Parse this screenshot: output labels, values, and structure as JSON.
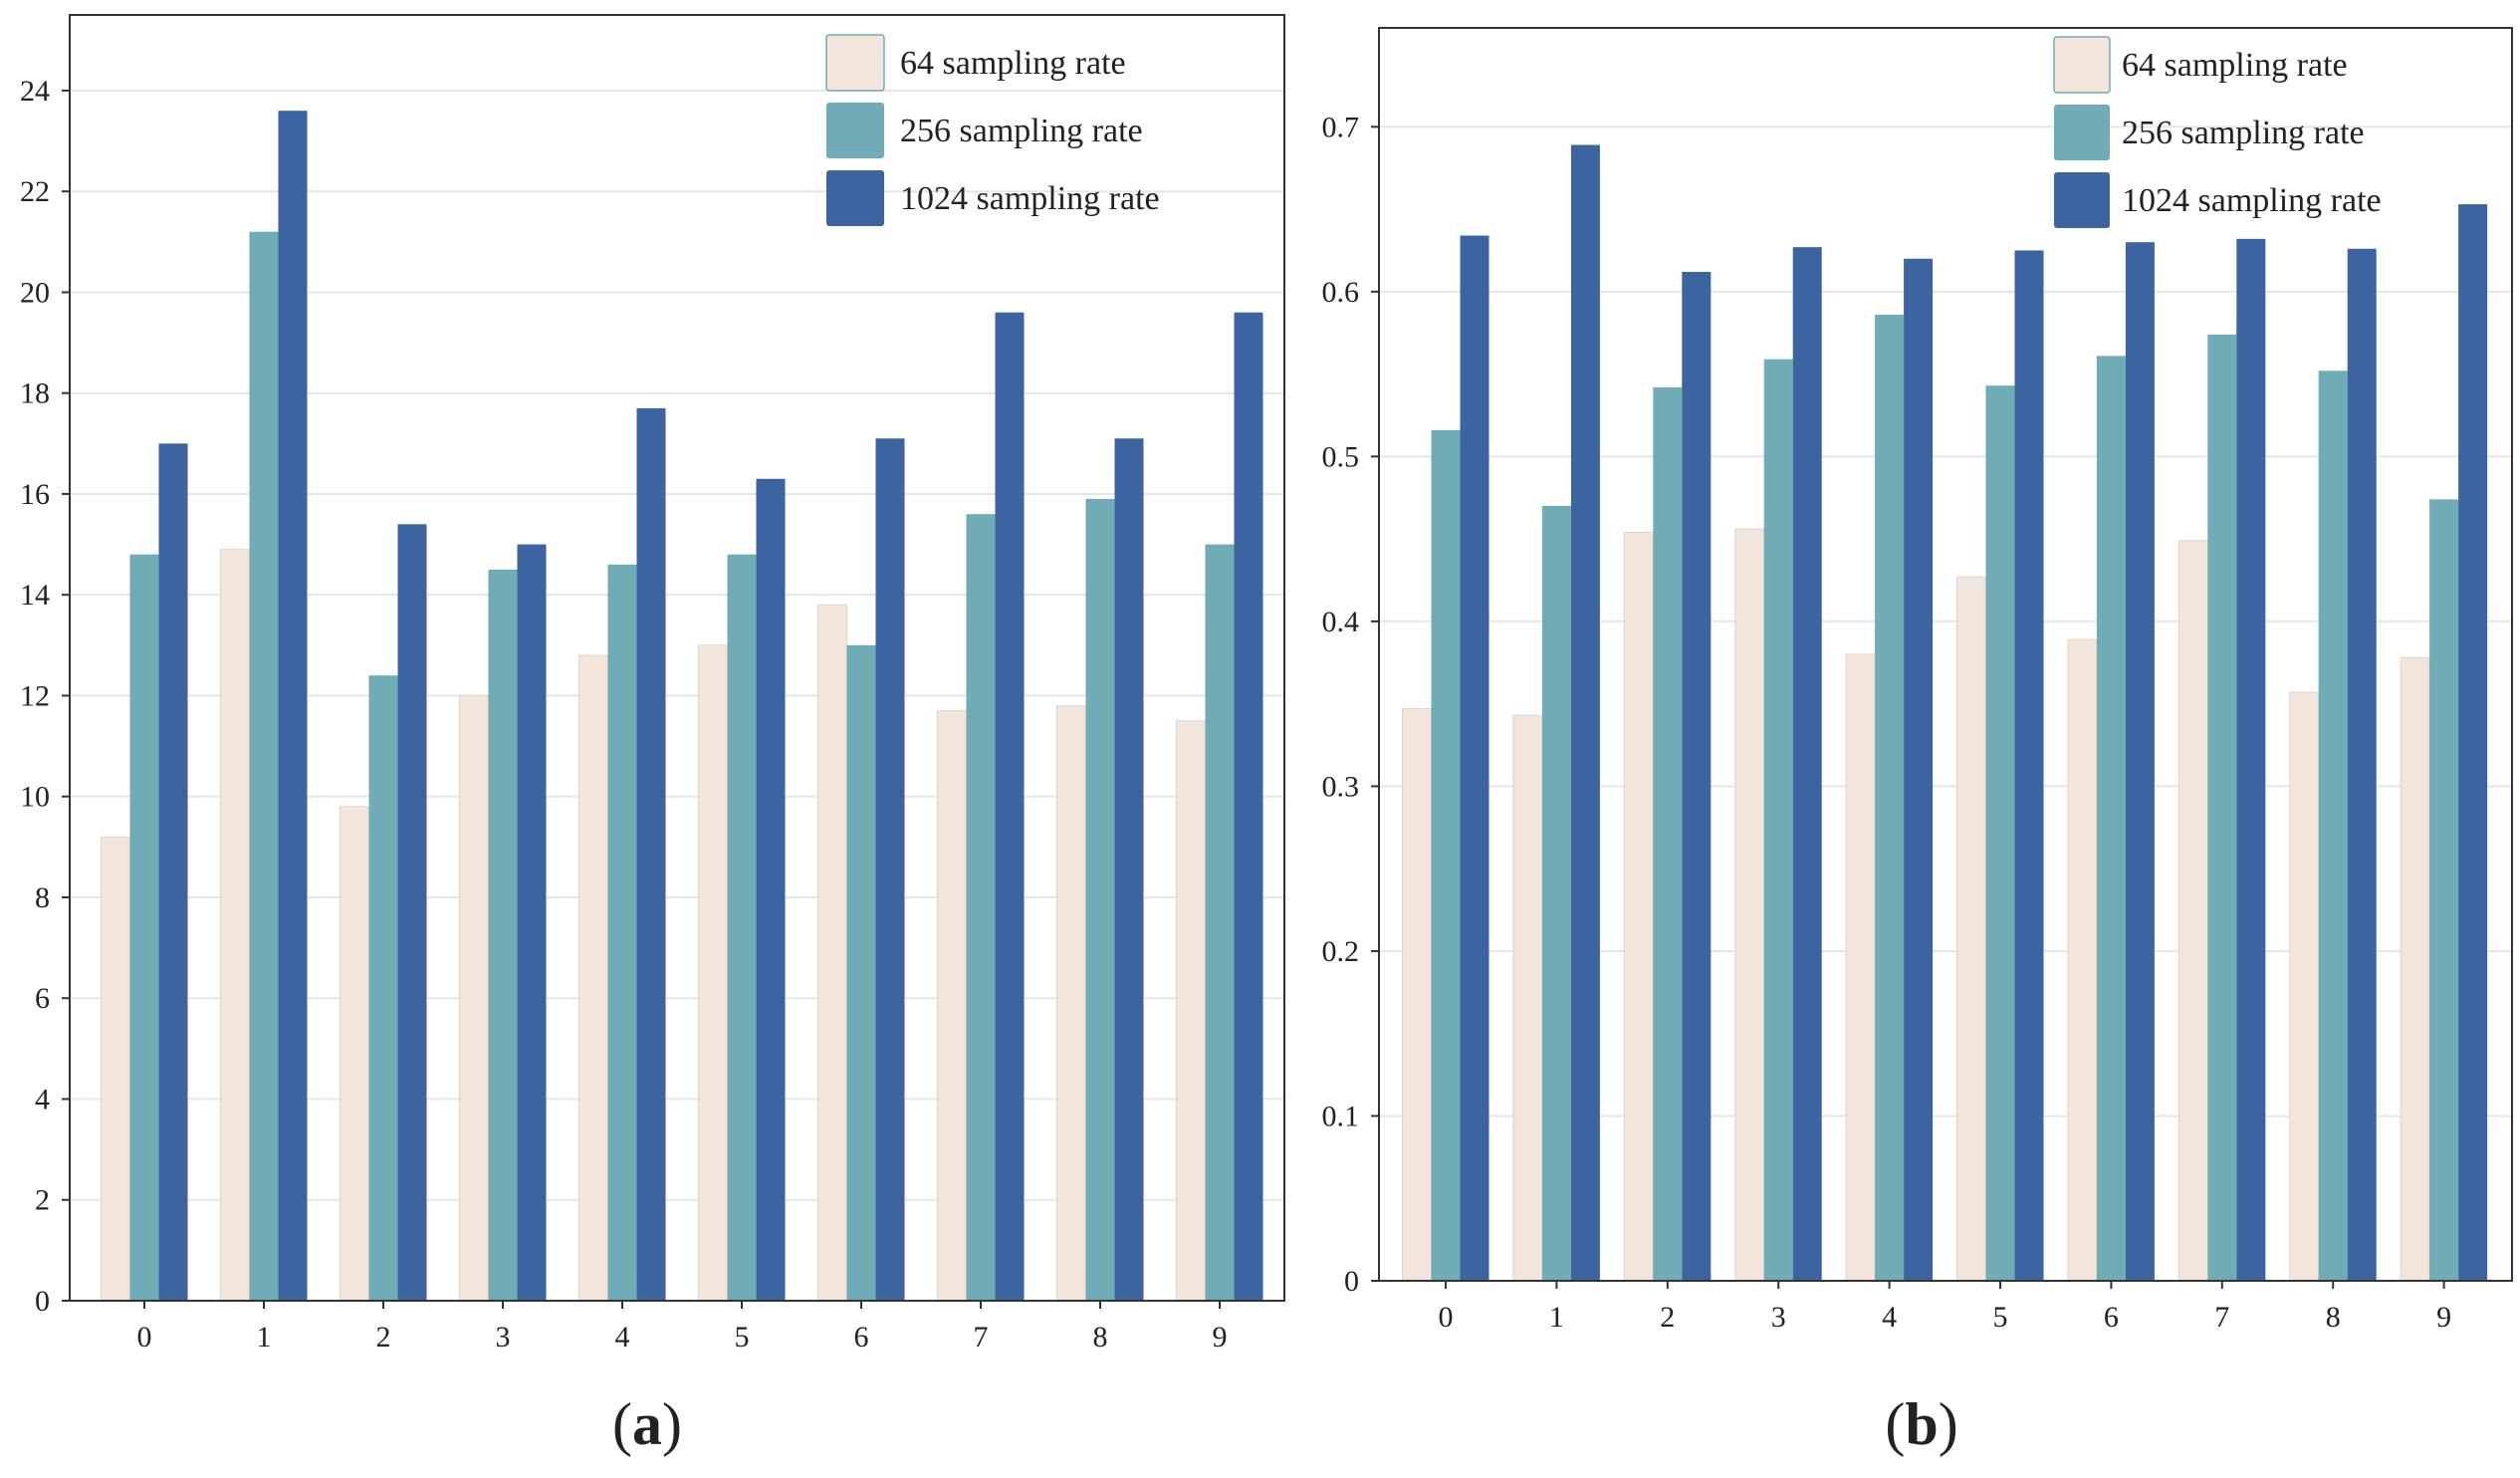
{
  "colors": {
    "s64": "#F2E6DC",
    "s256": "#6FACB5",
    "s1024": "#3C64A0",
    "grid": "#E6E6E6",
    "axis": "#333333"
  },
  "chart_data": [
    {
      "type": "bar",
      "panel_label": "a",
      "caption_open": "(",
      "caption_close": ")",
      "title": "",
      "xlabel": "",
      "ylabel": "",
      "categories": [
        "0",
        "1",
        "2",
        "3",
        "4",
        "5",
        "6",
        "7",
        "8",
        "9"
      ],
      "ylim": [
        0,
        25.5
      ],
      "yticks": [
        0,
        2,
        4,
        6,
        8,
        10,
        12,
        14,
        16,
        18,
        20,
        22,
        24
      ],
      "ytick_labels": [
        "0",
        "2",
        "4",
        "6",
        "8",
        "10",
        "12",
        "14",
        "16",
        "18",
        "20",
        "22",
        "24"
      ],
      "grid": true,
      "legend_position": "top-right",
      "series": [
        {
          "name": "64 sampling rate",
          "color_key": "s64",
          "values": [
            9.2,
            14.9,
            9.8,
            12.0,
            12.8,
            13.0,
            13.8,
            11.7,
            11.8,
            11.5
          ]
        },
        {
          "name": "256 sampling rate",
          "color_key": "s256",
          "values": [
            14.8,
            21.2,
            12.4,
            14.5,
            14.6,
            14.8,
            13.0,
            15.6,
            15.9,
            15.0
          ]
        },
        {
          "name": "1024 sampling rate",
          "color_key": "s1024",
          "values": [
            17.0,
            23.6,
            15.4,
            15.0,
            17.7,
            16.3,
            17.1,
            19.6,
            17.1,
            19.6
          ]
        }
      ]
    },
    {
      "type": "bar",
      "panel_label": "b",
      "caption_open": "(",
      "caption_close": ")",
      "title": "",
      "xlabel": "",
      "ylabel": "",
      "categories": [
        "0",
        "1",
        "2",
        "3",
        "4",
        "5",
        "6",
        "7",
        "8",
        "9"
      ],
      "ylim": [
        0,
        0.76
      ],
      "yticks": [
        0,
        0.1,
        0.2,
        0.3,
        0.4,
        0.5,
        0.6,
        0.7
      ],
      "ytick_labels": [
        "0",
        "0.1",
        "0.2",
        "0.3",
        "0.4",
        "0.5",
        "0.6",
        "0.7"
      ],
      "grid": true,
      "legend_position": "top-right",
      "series": [
        {
          "name": "64 sampling rate",
          "color_key": "s64",
          "values": [
            0.347,
            0.343,
            0.454,
            0.456,
            0.38,
            0.427,
            0.389,
            0.449,
            0.357,
            0.378
          ]
        },
        {
          "name": "256 sampling rate",
          "color_key": "s256",
          "values": [
            0.516,
            0.47,
            0.542,
            0.559,
            0.586,
            0.543,
            0.561,
            0.574,
            0.552,
            0.474
          ]
        },
        {
          "name": "1024 sampling rate",
          "color_key": "s1024",
          "values": [
            0.634,
            0.689,
            0.612,
            0.627,
            0.62,
            0.625,
            0.63,
            0.632,
            0.626,
            0.653
          ]
        }
      ]
    }
  ]
}
